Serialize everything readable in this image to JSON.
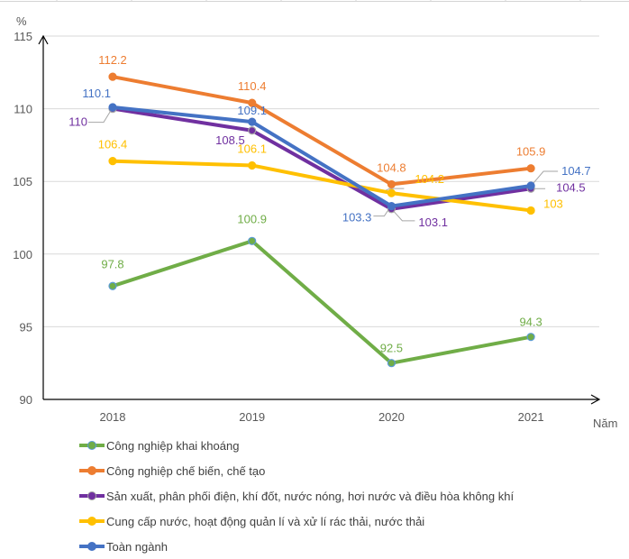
{
  "chart_data": {
    "type": "line",
    "title": "",
    "xlabel": "Năm",
    "ylabel": "%",
    "categories": [
      "2018",
      "2019",
      "2020",
      "2021"
    ],
    "ylim": [
      90,
      115
    ],
    "yticks": [
      90,
      95,
      100,
      105,
      110,
      115
    ],
    "grid": true,
    "legend_position": "bottom",
    "series": [
      {
        "name": "Công nghiệp khai khoáng",
        "color": "#70AD47",
        "marker_edge": "#5B9BD5",
        "values": [
          97.8,
          100.9,
          92.5,
          94.3
        ]
      },
      {
        "name": "Công nghiệp chế biến, chế tạo",
        "color": "#ED7D31",
        "marker_edge": "#ED7D31",
        "values": [
          112.2,
          110.4,
          104.8,
          105.9
        ]
      },
      {
        "name": "Sản xuất, phân phối điện, khí đốt, nước nóng, hơi nước và điều hòa không khí",
        "color": "#7030A0",
        "marker_edge": "#A5A5A5",
        "values": [
          110,
          108.5,
          103.1,
          104.5
        ]
      },
      {
        "name": "Cung cấp nước, hoạt động quản lí và xử lí rác thải, nước thải",
        "color": "#FFC000",
        "marker_edge": "#FFC000",
        "values": [
          106.4,
          106.1,
          104.2,
          103
        ]
      },
      {
        "name": "Toàn ngành",
        "color": "#4472C4",
        "marker_edge": "#4472C4",
        "values": [
          110.1,
          109.1,
          103.3,
          104.7
        ]
      }
    ]
  }
}
